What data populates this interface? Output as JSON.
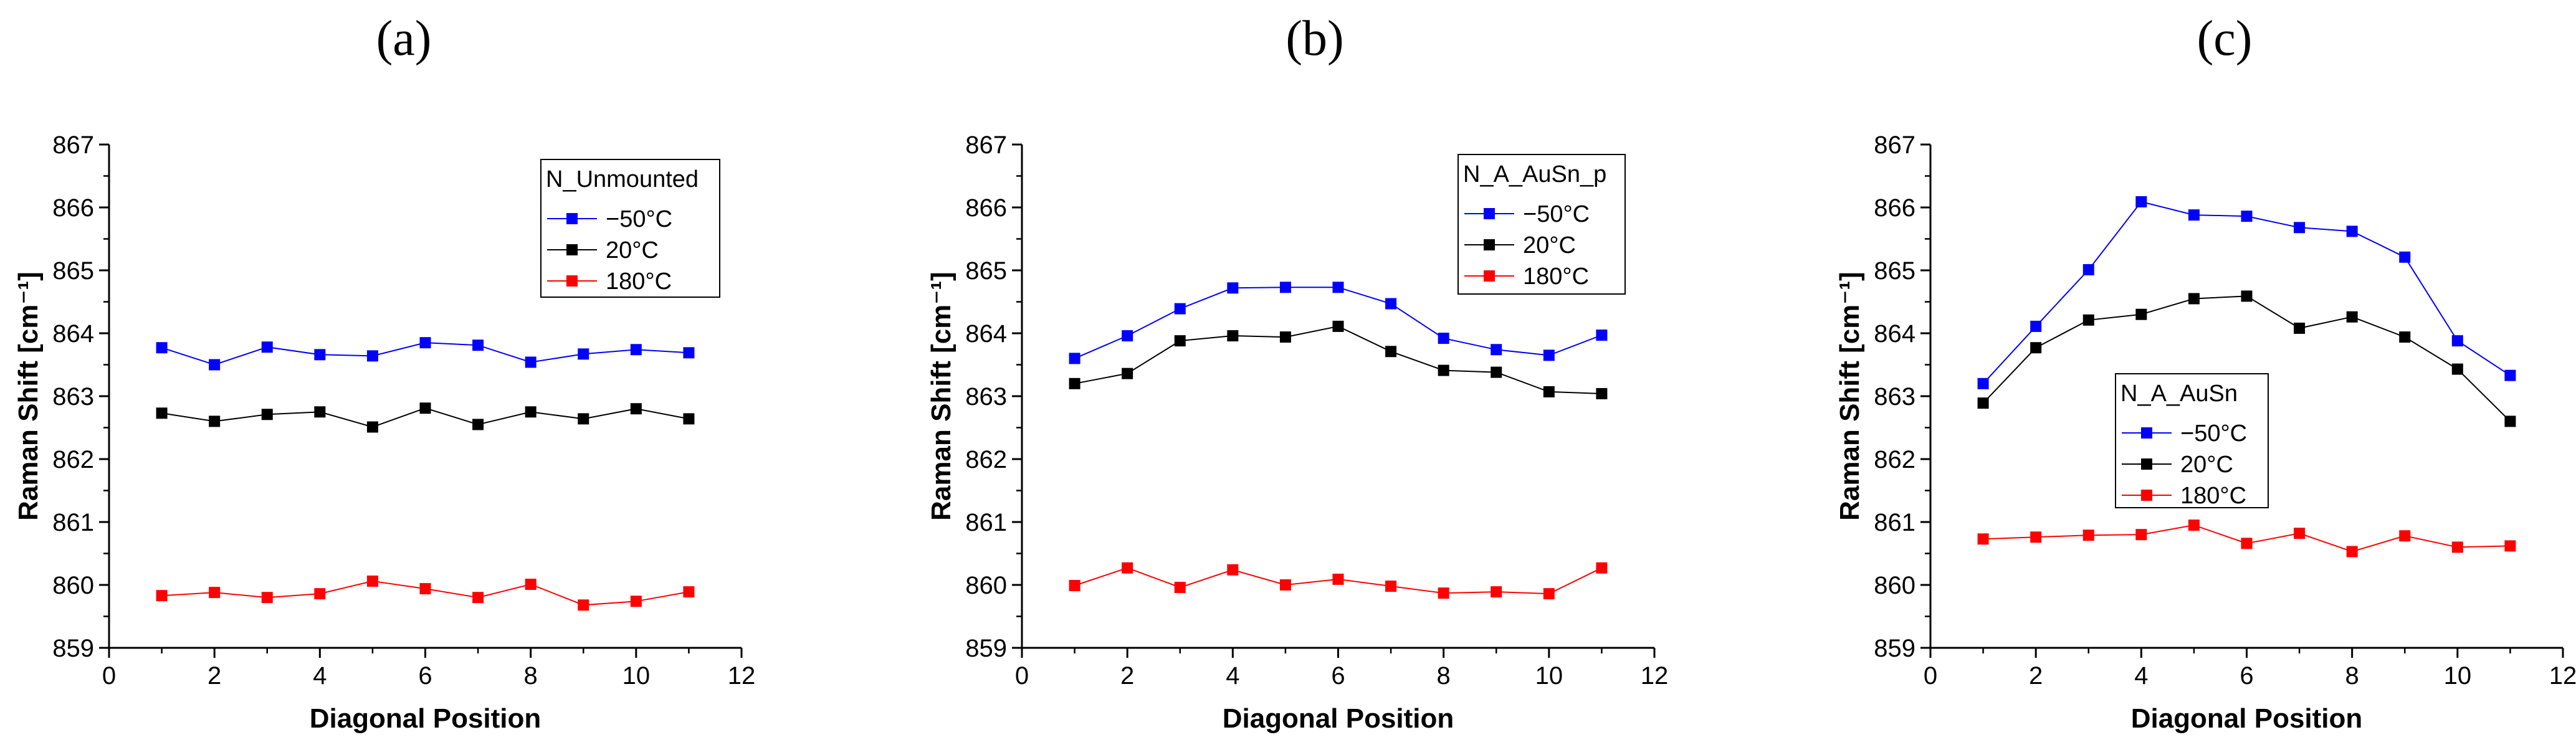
{
  "chart_data": [
    {
      "type": "line",
      "panel_label": "(a)",
      "title": "",
      "xlabel": "Diagonal Position",
      "ylabel": "Raman Shift [cm⁻¹]",
      "xlim": [
        0,
        12
      ],
      "ylim": [
        859,
        867
      ],
      "xticks": [
        "0",
        "2",
        "4",
        "6",
        "8",
        "10",
        "12"
      ],
      "yticks": [
        "859",
        "860",
        "861",
        "862",
        "863",
        "864",
        "865",
        "866",
        "867"
      ],
      "legend": {
        "title": "N_Unmounted",
        "placement": "top-right"
      },
      "x": [
        1,
        2,
        3,
        4,
        5,
        6,
        7,
        8,
        9,
        10,
        11
      ],
      "series": [
        {
          "name": "−50°C",
          "color": "#0000ff",
          "values": [
            863.77,
            863.5,
            863.78,
            863.66,
            863.64,
            863.85,
            863.81,
            863.54,
            863.67,
            863.74,
            863.69
          ]
        },
        {
          "name": "20°C",
          "color": "#000000",
          "values": [
            862.73,
            862.6,
            862.71,
            862.75,
            862.51,
            862.81,
            862.55,
            862.75,
            862.64,
            862.8,
            862.64
          ]
        },
        {
          "name": "180°C",
          "color": "#ff0000",
          "values": [
            859.83,
            859.88,
            859.8,
            859.86,
            860.06,
            859.94,
            859.8,
            860.01,
            859.68,
            859.74,
            859.89
          ]
        }
      ]
    },
    {
      "type": "line",
      "panel_label": "(b)",
      "title": "",
      "xlabel": "Diagonal Position",
      "ylabel": "Raman Shift [cm⁻¹]",
      "xlim": [
        0,
        12
      ],
      "ylim": [
        859,
        867
      ],
      "xticks": [
        "0",
        "2",
        "4",
        "6",
        "8",
        "10",
        "12"
      ],
      "yticks": [
        "859",
        "860",
        "861",
        "862",
        "863",
        "864",
        "865",
        "866",
        "867"
      ],
      "legend": {
        "title": "N_A_AuSn_p",
        "placement": "top-right"
      },
      "x": [
        1,
        2,
        3,
        4,
        5,
        6,
        7,
        8,
        9,
        10,
        11
      ],
      "series": [
        {
          "name": "−50°C",
          "color": "#0000ff",
          "values": [
            863.6,
            863.96,
            864.39,
            864.72,
            864.73,
            864.73,
            864.47,
            863.92,
            863.74,
            863.65,
            863.97
          ]
        },
        {
          "name": "20°C",
          "color": "#000000",
          "values": [
            863.2,
            863.36,
            863.88,
            863.96,
            863.94,
            864.11,
            863.71,
            863.41,
            863.38,
            863.07,
            863.04
          ]
        },
        {
          "name": "180°C",
          "color": "#ff0000",
          "values": [
            859.99,
            860.27,
            859.96,
            860.24,
            860.0,
            860.09,
            859.98,
            859.87,
            859.89,
            859.86,
            860.27
          ]
        }
      ]
    },
    {
      "type": "line",
      "panel_label": "(c)",
      "title": "",
      "xlabel": "Diagonal Position",
      "ylabel": "Raman Shift [cm⁻¹]",
      "xlim": [
        0,
        12
      ],
      "ylim": [
        859,
        867
      ],
      "xticks": [
        "0",
        "2",
        "4",
        "6",
        "8",
        "10",
        "12"
      ],
      "yticks": [
        "859",
        "860",
        "861",
        "862",
        "863",
        "864",
        "865",
        "866",
        "867"
      ],
      "legend": {
        "title": "N_A_AuSn",
        "placement": "center-left"
      },
      "x": [
        1,
        2,
        3,
        4,
        5,
        6,
        7,
        8,
        9,
        10,
        11
      ],
      "series": [
        {
          "name": "−50°C",
          "color": "#0000ff",
          "values": [
            863.2,
            864.11,
            865.01,
            866.09,
            865.88,
            865.86,
            865.68,
            865.62,
            865.21,
            863.88,
            863.33
          ]
        },
        {
          "name": "20°C",
          "color": "#000000",
          "values": [
            862.89,
            863.77,
            864.21,
            864.3,
            864.55,
            864.59,
            864.08,
            864.26,
            863.94,
            863.43,
            862.6
          ]
        },
        {
          "name": "180°C",
          "color": "#ff0000",
          "values": [
            860.73,
            860.76,
            860.79,
            860.8,
            860.95,
            860.66,
            860.82,
            860.53,
            860.78,
            860.6,
            860.62
          ]
        }
      ]
    }
  ]
}
